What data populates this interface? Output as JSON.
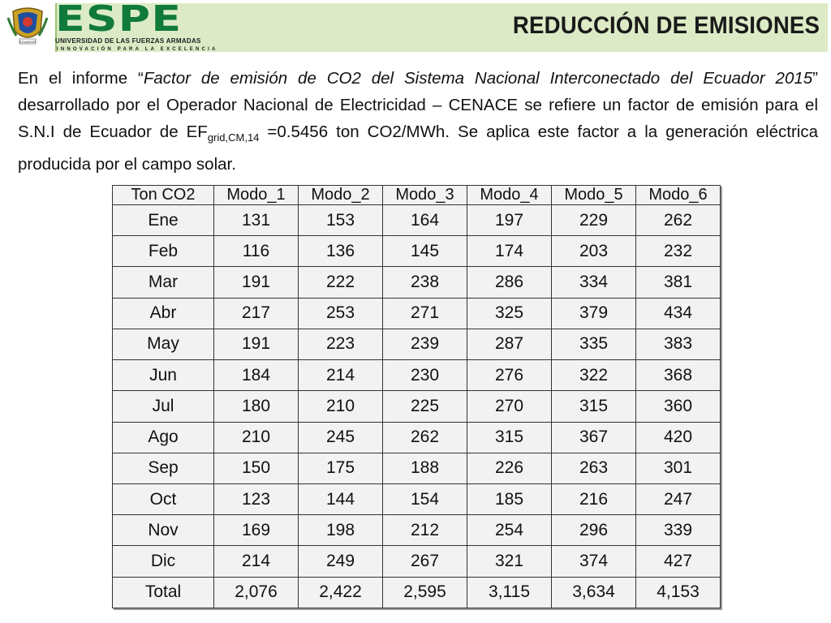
{
  "header": {
    "logo_text": "ESPE",
    "logo_subtitle": "UNIVERSIDAD DE LAS FUERZAS ARMADAS",
    "logo_tagline": "INNOVACIÓN PARA LA EXCELENCIA",
    "crest_label": "ECUADOR",
    "title": "REDUCCIÓN DE EMISIONES",
    "band_color": "#dcebc6",
    "brand_color": "#0f7a3a"
  },
  "paragraph": {
    "p1": "En el informe “",
    "report_title": "Factor de emisión de CO2 del Sistema Nacional Interconectado del Ecuador 2015",
    "p2": "” desarrollado por el Operador Nacional de Electricidad – CENACE se refiere un factor de emisión para el S.N.I de Ecuador de  EF",
    "subscript": "grid,CM,14",
    "p3": "  =0.5456 ton CO2/MWh.     Se aplica este factor a  la generación eléctrica producida por el campo solar."
  },
  "table": {
    "headers": [
      "Ton CO2",
      "Modo_1",
      "Modo_2",
      "Modo_3",
      "Modo_4",
      "Modo_5",
      "Modo_6"
    ],
    "rows": [
      [
        "Ene",
        "131",
        "153",
        "164",
        "197",
        "229",
        "262"
      ],
      [
        "Feb",
        "116",
        "136",
        "145",
        "174",
        "203",
        "232"
      ],
      [
        "Mar",
        "191",
        "222",
        "238",
        "286",
        "334",
        "381"
      ],
      [
        "Abr",
        "217",
        "253",
        "271",
        "325",
        "379",
        "434"
      ],
      [
        "May",
        "191",
        "223",
        "239",
        "287",
        "335",
        "383"
      ],
      [
        "Jun",
        "184",
        "214",
        "230",
        "276",
        "322",
        "368"
      ],
      [
        "Jul",
        "180",
        "210",
        "225",
        "270",
        "315",
        "360"
      ],
      [
        "Ago",
        "210",
        "245",
        "262",
        "315",
        "367",
        "420"
      ],
      [
        "Sep",
        "150",
        "175",
        "188",
        "226",
        "263",
        "301"
      ],
      [
        "Oct",
        "123",
        "144",
        "154",
        "185",
        "216",
        "247"
      ],
      [
        "Nov",
        "169",
        "198",
        "212",
        "254",
        "296",
        "339"
      ],
      [
        "Dic",
        "214",
        "249",
        "267",
        "321",
        "374",
        "427"
      ],
      [
        "Total",
        "2,076",
        "2,422",
        "2,595",
        "3,115",
        "3,634",
        "4,153"
      ]
    ]
  }
}
